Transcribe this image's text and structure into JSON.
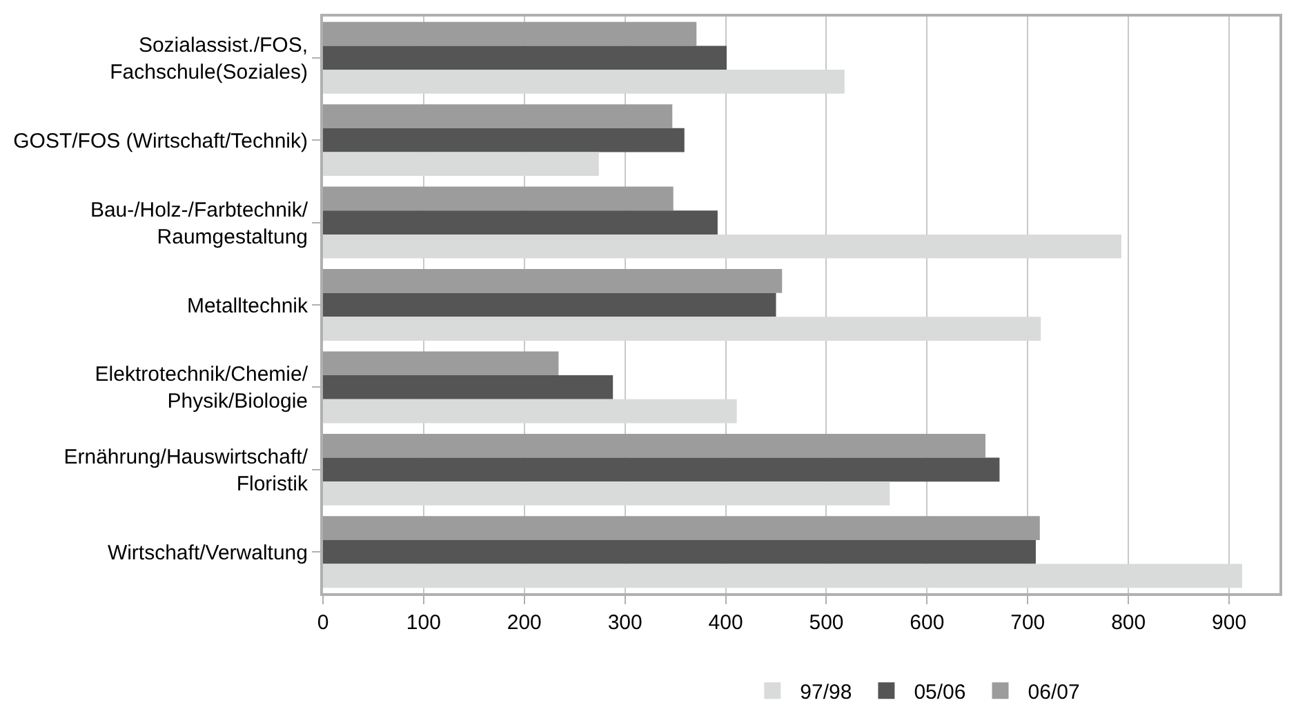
{
  "chart_data": {
    "type": "bar",
    "orientation": "horizontal",
    "categories": [
      "Sozialassist./FOS,\nFachschule(Soziales)",
      "GOST/FOS (Wirtschaft/Technik)",
      "Bau-/Holz-/Farbtechnik/\nRaumgestaltung",
      "Metalltechnik",
      "Elektrotechnik/Chemie/\nPhysik/Biologie",
      "Ernährung/Hauswirtschaft/\nFloristik",
      "Wirtschaft/Verwaltung"
    ],
    "series": [
      {
        "name": "97/98",
        "color": "#d9dbda",
        "values": [
          518,
          274,
          793,
          713,
          411,
          563,
          913
        ]
      },
      {
        "name": "05/06",
        "color": "#555555",
        "values": [
          401,
          359,
          392,
          450,
          288,
          672,
          708
        ]
      },
      {
        "name": "06/07",
        "color": "#9c9c9c",
        "values": [
          371,
          347,
          348,
          456,
          234,
          658,
          712
        ]
      }
    ],
    "xlim": [
      0,
      950
    ],
    "xticks": [
      0,
      100,
      200,
      300,
      400,
      500,
      600,
      700,
      800,
      900
    ],
    "grid": "x",
    "legend": "bottom"
  }
}
